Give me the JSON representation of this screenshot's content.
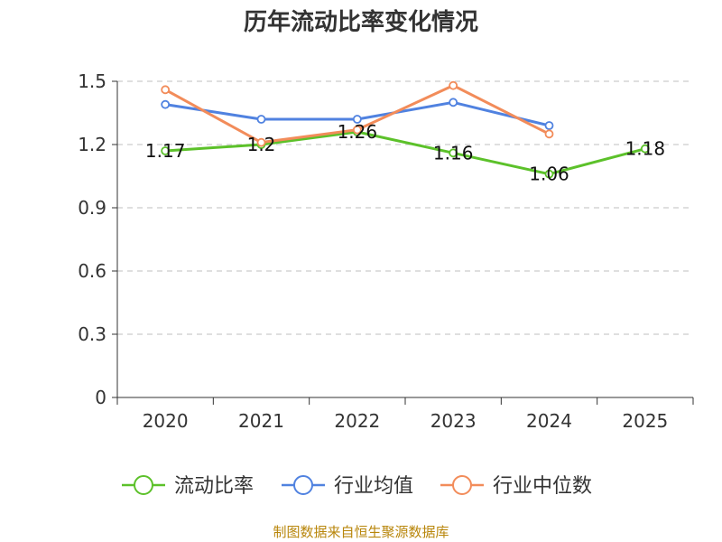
{
  "chart_data": {
    "type": "line",
    "title": "历年流动比率变化情况",
    "categories": [
      "2020",
      "2021",
      "2022",
      "2023",
      "2024",
      "2025"
    ],
    "ylim": [
      0,
      1.5
    ],
    "yticks": [
      0,
      0.3,
      0.6,
      0.9,
      1.2,
      1.5
    ],
    "ytick_labels": [
      "0",
      "0.3",
      "0.6",
      "0.9",
      "1.2",
      "1.5"
    ],
    "grid": true,
    "xlabel": "",
    "ylabel": "",
    "series": [
      {
        "name": "流动比率",
        "color": "#5cc12a",
        "values": [
          1.17,
          1.2,
          1.26,
          1.16,
          1.06,
          1.18
        ],
        "data_labels": [
          "1.17",
          "1.2",
          "1.26",
          "1.16",
          "1.06",
          "1.18"
        ]
      },
      {
        "name": "行业均值",
        "color": "#5082e0",
        "values": [
          1.39,
          1.32,
          1.32,
          1.4,
          1.29,
          null
        ]
      },
      {
        "name": "行业中位数",
        "color": "#f28c5a",
        "values": [
          1.46,
          1.21,
          1.27,
          1.48,
          1.25,
          null
        ]
      }
    ],
    "legend_position": "bottom"
  },
  "source_note": "制图数据来自恒生聚源数据库"
}
